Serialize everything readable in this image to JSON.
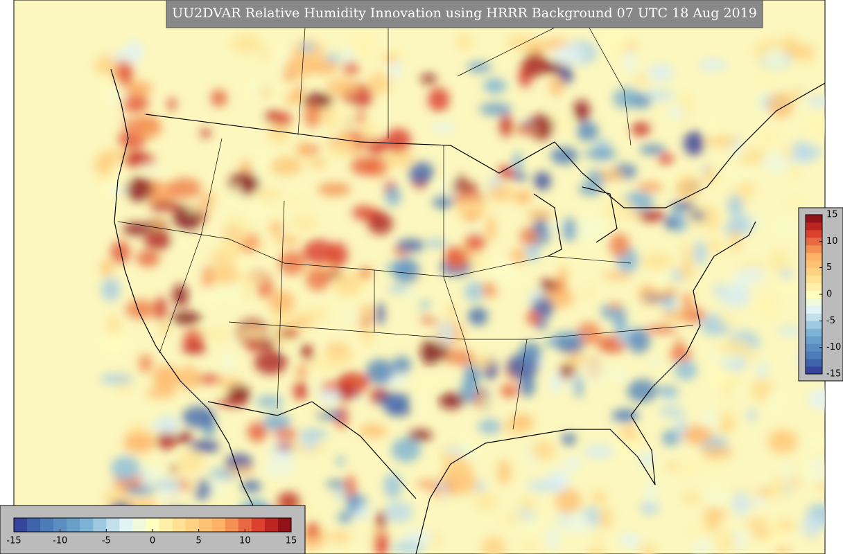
{
  "title": "UU2DVAR Relative Humidity Innovation using HRRR Background 07 UTC 18 Aug 2019",
  "horizontal_colorbar": {
    "range": [
      -15,
      15
    ],
    "ticks": [
      -15,
      -10,
      -5,
      0,
      5,
      10,
      15
    ]
  },
  "vertical_colorbar": {
    "range": [
      -15,
      15
    ],
    "ticks": [
      15,
      10,
      5,
      0,
      -5,
      -10,
      -15
    ]
  }
}
